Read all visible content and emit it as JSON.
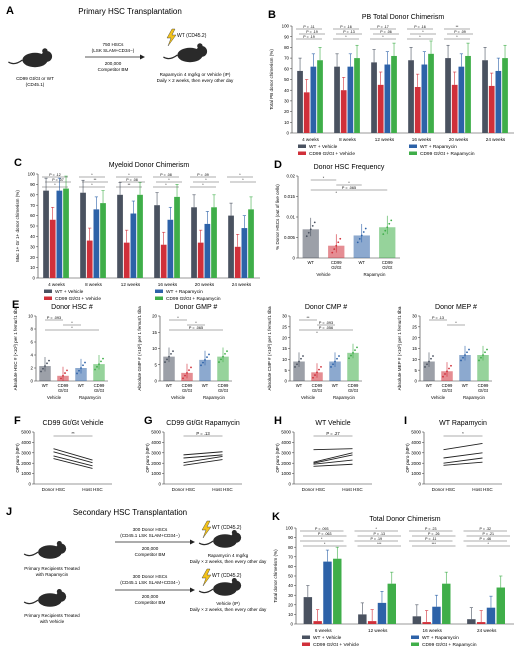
{
  "colors": {
    "wt_veh": "#4a5260",
    "wt_rap": "#2d62a8",
    "cd_veh": "#d0303a",
    "cd_rap": "#3fae49",
    "mouse": "#2a2a2a",
    "bolt": "#f2c21b"
  },
  "panelA": {
    "letter": "A",
    "title": "Primary HSC Transplantation",
    "donor": "CD99 Gt/Gt or WT",
    "donor2": "(CD45.1)",
    "cells": "750 HSCs",
    "cells2": "(LSK SLAM+CD34−)",
    "competitor": "200,000",
    "competitor2": "Competitor BM",
    "recipient": "WT (CD45.2)",
    "treatment": "Rapamycin 4 mg/kg or Vehicle (IP)",
    "treatment2": "Daily × 2 weeks, then every other day"
  },
  "chart_data": [
    {
      "id": "B",
      "type": "bar",
      "letter": "B",
      "title": "PB Total Donor Chimerism",
      "ylabel": "Total PB donor chimerism (%)",
      "ylim": [
        0,
        100
      ],
      "yticks": [
        0,
        10,
        20,
        30,
        40,
        50,
        60,
        70,
        80,
        90,
        100
      ],
      "categories": [
        "4 weeks",
        "8 weeks",
        "12 weeks",
        "16 weeks",
        "20 weeks",
        "24 weeks"
      ],
      "series": [
        {
          "name": "WT + Vehicle",
          "values": [
            58,
            62,
            66,
            68,
            70,
            68
          ]
        },
        {
          "name": "CD99 Gt/Gt + Vehicle",
          "values": [
            38,
            40,
            45,
            43,
            45,
            44
          ]
        },
        {
          "name": "WT + Rapamycin",
          "values": [
            62,
            62,
            64,
            64,
            62,
            58
          ]
        },
        {
          "name": "CD99 Gt/Gt + Rapamycin",
          "values": [
            68,
            70,
            72,
            74,
            72,
            70
          ]
        }
      ],
      "annotations": [
        "P = .11",
        "P = .19",
        "P = .19",
        "P = .16",
        "P = .13",
        "*",
        "P = .17",
        "P = .06",
        "*",
        "P = .16",
        "*",
        "*",
        "**",
        "P = .09",
        "*"
      ]
    },
    {
      "id": "C",
      "type": "bar",
      "letter": "C",
      "title": "Myeloid Donor Chimerism",
      "ylabel": "Mac 1+ Gr 1+ donor chimerism (%)",
      "ylim": [
        0,
        100
      ],
      "yticks": [
        0,
        10,
        20,
        30,
        40,
        50,
        60,
        70,
        80,
        90,
        100
      ],
      "categories": [
        "4 weeks",
        "8 weeks",
        "12 weeks",
        "16 weeks",
        "20 weeks",
        "24 weeks"
      ],
      "series": [
        {
          "name": "WT + Vehicle",
          "values": [
            84,
            82,
            80,
            70,
            68,
            60
          ]
        },
        {
          "name": "CD99 Gt/Gt + Vehicle",
          "values": [
            56,
            36,
            34,
            32,
            34,
            30
          ]
        },
        {
          "name": "WT + Rapamycin",
          "values": [
            84,
            66,
            62,
            56,
            52,
            48
          ]
        },
        {
          "name": "CD99 Gt/Gt + Rapamycin",
          "values": [
            86,
            72,
            80,
            78,
            68,
            66
          ]
        }
      ],
      "annotations": [
        "P = .12",
        "P = .07",
        "*",
        "*",
        "**",
        "*",
        "*",
        "P = .08",
        "**",
        "P = .08",
        "*",
        "*",
        "P = .09",
        "*",
        "*",
        "*",
        "*"
      ]
    },
    {
      "id": "D",
      "type": "bar",
      "letter": "D",
      "title": "Donor HSC Frequency",
      "ylabel": "% Donor HSCs (out of live cells)",
      "ylim": [
        0,
        0.02
      ],
      "yticks": [
        0,
        0.005,
        0.01,
        0.015,
        0.02
      ],
      "yticklabels": [
        "0",
        "0.005",
        "0.01",
        "0.015",
        "0.02"
      ],
      "categories": [
        "WT",
        "CD99 Gt/Gt",
        "WT",
        "CD99 Gt/Gt"
      ],
      "groups": [
        "Vehicle",
        "Rapamycin"
      ],
      "values": [
        0.007,
        0.003,
        0.0055,
        0.0075
      ],
      "annotations": [
        "*",
        "*",
        "P = .065",
        "*"
      ]
    },
    {
      "id": "E1",
      "type": "bar",
      "letter": "E",
      "title": "Donor HSC #",
      "ylabel": "Absolute HSC # (×10³) per 1 femur/1 tiba",
      "ylim": [
        0,
        10
      ],
      "yticks": [
        0,
        2,
        4,
        6,
        8,
        10
      ],
      "categories": [
        "WT",
        "CD99 Gt/Gt",
        "WT",
        "CD99 Gt/Gt"
      ],
      "groups": [
        "Vehicle",
        "Rapamycin"
      ],
      "values": [
        2.3,
        0.8,
        2.0,
        2.6
      ],
      "annotations": [
        "P = .093",
        "*",
        "*"
      ]
    },
    {
      "id": "E2",
      "type": "bar",
      "title": "Donor GMP #",
      "ylabel": "Absolute GMP # (×10³) per 1 femur/1 tiba",
      "ylim": [
        0,
        20
      ],
      "yticks": [
        0,
        5,
        10,
        15,
        20
      ],
      "categories": [
        "WT",
        "CD99 Gt/Gt",
        "WT",
        "CD99 Gt/Gt"
      ],
      "groups": [
        "Vehicle",
        "Rapamycin"
      ],
      "values": [
        7.5,
        2.5,
        6.5,
        7.5
      ],
      "annotations": [
        "*",
        "*",
        "P = .065"
      ]
    },
    {
      "id": "E3",
      "type": "bar",
      "title": "Donor CMP #",
      "ylabel": "Absolute CMP # (×10³) per 1 femur/1 tiba",
      "ylim": [
        0,
        30
      ],
      "yticks": [
        0,
        5,
        10,
        15,
        20,
        25,
        30
      ],
      "categories": [
        "WT",
        "CD99 Gt/Gt",
        "WT",
        "CD99 Gt/Gt"
      ],
      "groups": [
        "Vehicle",
        "Rapamycin"
      ],
      "values": [
        9,
        4,
        9,
        13
      ],
      "annotations": [
        "**",
        "P = .093",
        "P = .056",
        "*"
      ]
    },
    {
      "id": "E4",
      "type": "bar",
      "title": "Donor MEP #",
      "ylabel": "Absolute MEP # (×10³) per 1 femur/1 tiba",
      "ylim": [
        0,
        30
      ],
      "yticks": [
        0,
        5,
        10,
        15,
        20,
        25,
        30
      ],
      "categories": [
        "WT",
        "CD99 Gt/Gt",
        "WT",
        "CD99 Gt/Gt"
      ],
      "groups": [
        "Vehicle",
        "Rapamycin"
      ],
      "values": [
        9,
        4.5,
        12,
        12
      ],
      "annotations": [
        "P = .13",
        "*"
      ]
    },
    {
      "id": "F",
      "type": "line",
      "letter": "F",
      "title": "CD99 Gt/Gt Vehicle",
      "ylabel": "OP puro (MFI)",
      "ylim": [
        0,
        5000
      ],
      "yticks": [
        0,
        1000,
        2000,
        3000,
        4000,
        5000
      ],
      "categories": [
        "Donor HSC",
        "Host HSC"
      ],
      "annotation": "**",
      "pairs": [
        [
          3400,
          2300
        ],
        [
          3100,
          2050
        ],
        [
          2700,
          1750
        ],
        [
          2450,
          1500
        ]
      ]
    },
    {
      "id": "G",
      "type": "line",
      "letter": "G",
      "title": "CD99 Gt/Gt Rapamycin",
      "ylabel": "OP puro (MFI)",
      "ylim": [
        0,
        5000
      ],
      "yticks": [
        0,
        1000,
        2000,
        3000,
        4000,
        5000
      ],
      "categories": [
        "Donor HSC",
        "Host HSC"
      ],
      "annotation": "P = .13",
      "pairs": [
        [
          2800,
          3100
        ],
        [
          2500,
          2800
        ],
        [
          2050,
          2650
        ],
        [
          1800,
          2350
        ]
      ]
    },
    {
      "id": "H",
      "type": "line",
      "letter": "H",
      "title": "WT Vehicle",
      "ylabel": "OP puro (MFI)",
      "ylim": [
        0,
        5000
      ],
      "yticks": [
        0,
        1000,
        2000,
        3000,
        4000,
        5000
      ],
      "categories": [
        "Donor HSC",
        "Host HSC"
      ],
      "annotation": "P = .27",
      "pairs": [
        [
          3300,
          3400
        ],
        [
          2100,
          3000
        ],
        [
          2000,
          2800
        ],
        [
          1900,
          2300
        ],
        [
          1700,
          1900
        ]
      ]
    },
    {
      "id": "I",
      "type": "line",
      "letter": "I",
      "title": "WT Rapamycin",
      "ylabel": "OP puro (MFI)",
      "ylim": [
        0,
        5000
      ],
      "yticks": [
        0,
        1000,
        2000,
        3000,
        4000,
        5000
      ],
      "categories": [
        "Donor HSC",
        "Host HSC"
      ],
      "annotation": "*",
      "pairs": [
        [
          3300,
          3900
        ],
        [
          2500,
          3000
        ],
        [
          2000,
          2500
        ],
        [
          1800,
          2100
        ]
      ]
    },
    {
      "id": "K",
      "type": "bar",
      "letter": "K",
      "title": "Total Donor Chimerism",
      "ylabel": "Total donor chimerism (%)",
      "ylim": [
        0,
        100
      ],
      "yticks": [
        0,
        10,
        20,
        30,
        40,
        50,
        60,
        70,
        80,
        90,
        100
      ],
      "categories": [
        "6 weeks",
        "12 weeks",
        "16 weeks",
        "24 weeks"
      ],
      "series": [
        {
          "name": "WT + Vehicle",
          "values": [
            28,
            10,
            8,
            5
          ]
        },
        {
          "name": "CD99 Gt/Gt + Vehicle",
          "values": [
            3,
            3,
            2,
            2
          ]
        },
        {
          "name": "WT + Rapamycin",
          "values": [
            65,
            22,
            18,
            17
          ]
        },
        {
          "name": "CD99 Gt/Gt + Rapamycin",
          "values": [
            68,
            42,
            42,
            38
          ]
        }
      ],
      "annotations": [
        "P = .093",
        "P = .063",
        "*",
        "*",
        "*",
        "P = .13",
        "P = .19",
        "***",
        "P = .23",
        "P = .26",
        "P = .11",
        "***",
        "P = .32",
        "P = .21",
        "P = .46",
        "*"
      ]
    }
  ],
  "panelJ": {
    "letter": "J",
    "title": "Secondary HSC Transplantation",
    "row1": {
      "source": "Primary Recipients Treated",
      "source2": "with Rapamycin",
      "cells": "300 Donor HSCs",
      "cells2": "(CD45.1 LSK SLAM+CD34−)",
      "comp": "200,000",
      "comp2": "Competitor BM",
      "recipient": "WT (CD45.2)",
      "treatment": "Rapamycin 4 mg/kg",
      "treatment2": "Daily × 2 weeks, then every other day"
    },
    "row2": {
      "source": "Primary Recipients Treated",
      "source2": "with Vehicle",
      "cells": "300 Donor HSCs",
      "cells2": "(CD45.1 LSK SLAM+CD34−)",
      "comp": "200,000",
      "comp2": "Competitor BM",
      "recipient": "WT (CD45.2)",
      "treatment": "Vehicle (IP)",
      "treatment2": "Daily × 2 weeks, then every other day"
    }
  },
  "legend": {
    "wt_veh": "WT + Vehicle",
    "wt_rap": "WT + Rapamycin",
    "cd_veh": "CD99 Gt/Gt + Vehicle",
    "cd_rap": "CD99 Gt/Gt + Rapamycin"
  }
}
